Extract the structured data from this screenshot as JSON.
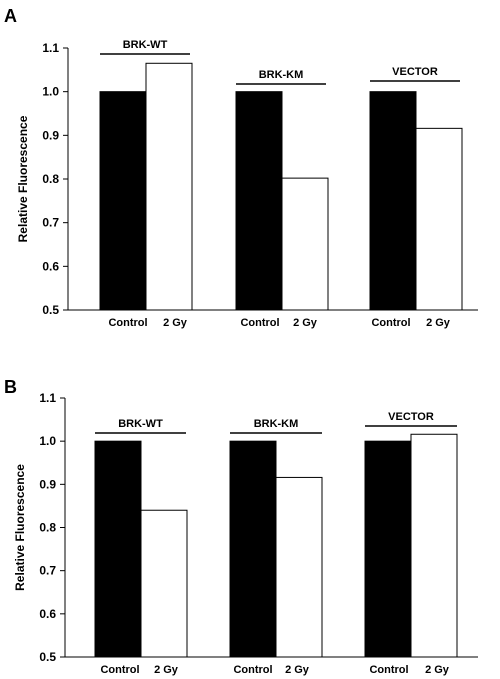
{
  "chart_data": [
    {
      "panel": "A",
      "type": "bar",
      "ylabel": "Relative Fluorescence",
      "ylim": [
        0.5,
        1.1
      ],
      "yticks": [
        "0.5",
        "0.6",
        "0.7",
        "0.8",
        "0.9",
        "1.0",
        "1.1"
      ],
      "groups": [
        {
          "name": "BRK-WT",
          "categories": [
            "Control",
            "2 Gy"
          ],
          "values": [
            1.0,
            1.065
          ],
          "colors": [
            "#000000",
            "#ffffff"
          ]
        },
        {
          "name": "BRK-KM",
          "categories": [
            "Control",
            "2 Gy"
          ],
          "values": [
            1.0,
            0.802
          ],
          "colors": [
            "#000000",
            "#ffffff"
          ]
        },
        {
          "name": "VECTOR",
          "categories": [
            "Control",
            "2 Gy"
          ],
          "values": [
            1.0,
            0.916
          ],
          "colors": [
            "#000000",
            "#ffffff"
          ]
        }
      ]
    },
    {
      "panel": "B",
      "type": "bar",
      "ylabel": "Relative Fluorescence",
      "ylim": [
        0.5,
        1.1
      ],
      "yticks": [
        "0.5",
        "0.6",
        "0.7",
        "0.8",
        "0.9",
        "1.0",
        "1.1"
      ],
      "groups": [
        {
          "name": "BRK-WT",
          "categories": [
            "Control",
            "2 Gy"
          ],
          "values": [
            1.0,
            0.84
          ],
          "colors": [
            "#000000",
            "#ffffff"
          ]
        },
        {
          "name": "BRK-KM",
          "categories": [
            "Control",
            "2 Gy"
          ],
          "values": [
            1.0,
            0.916
          ],
          "colors": [
            "#000000",
            "#ffffff"
          ]
        },
        {
          "name": "VECTOR",
          "categories": [
            "Control",
            "2 Gy"
          ],
          "values": [
            1.0,
            1.016
          ],
          "colors": [
            "#000000",
            "#ffffff"
          ]
        }
      ]
    }
  ]
}
